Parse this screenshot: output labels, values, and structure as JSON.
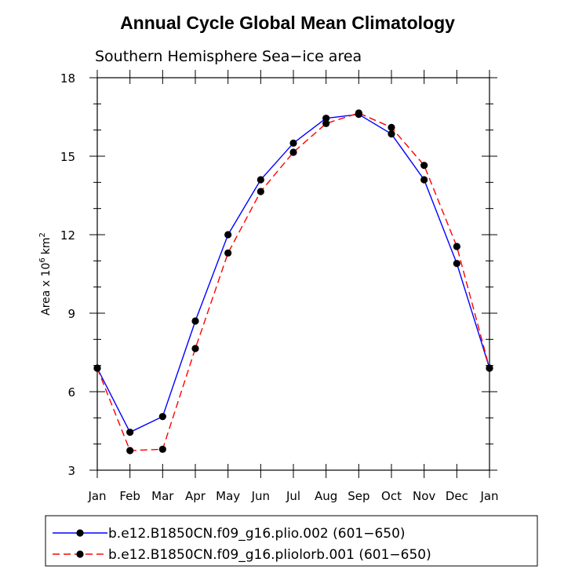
{
  "chart_data": {
    "type": "line",
    "title": "Annual Cycle Global Mean Climatology",
    "subtitle": "Southern Hemisphere Sea−ice area",
    "ylabel": "Area x 10",
    "ylabel_exp": "6",
    "ylabel_unit": "km",
    "ylabel_unit_exp": "2",
    "categories": [
      "Jan",
      "Feb",
      "Mar",
      "Apr",
      "May",
      "Jun",
      "Jul",
      "Aug",
      "Sep",
      "Oct",
      "Nov",
      "Dec",
      "Jan"
    ],
    "ylim": [
      3,
      18
    ],
    "yticks": [
      3,
      6,
      9,
      12,
      15,
      18
    ],
    "grid": false,
    "legend_position": "bottom",
    "series": [
      {
        "name": "b.e12.B1850CN.f09_g16.plio.002 (601−650)",
        "color": "#0000ff",
        "dash": "solid",
        "values": [
          6.9,
          4.45,
          5.05,
          8.7,
          12.0,
          14.1,
          15.5,
          16.45,
          16.6,
          15.85,
          14.1,
          10.9,
          6.9
        ]
      },
      {
        "name": "b.e12.B1850CN.f09_g16.pliolorb.001 (601−650)",
        "color": "#ff0000",
        "dash": "dashed",
        "values": [
          6.9,
          3.75,
          3.8,
          7.65,
          11.3,
          13.65,
          15.15,
          16.25,
          16.65,
          16.1,
          14.65,
          11.55,
          6.9
        ]
      }
    ]
  }
}
